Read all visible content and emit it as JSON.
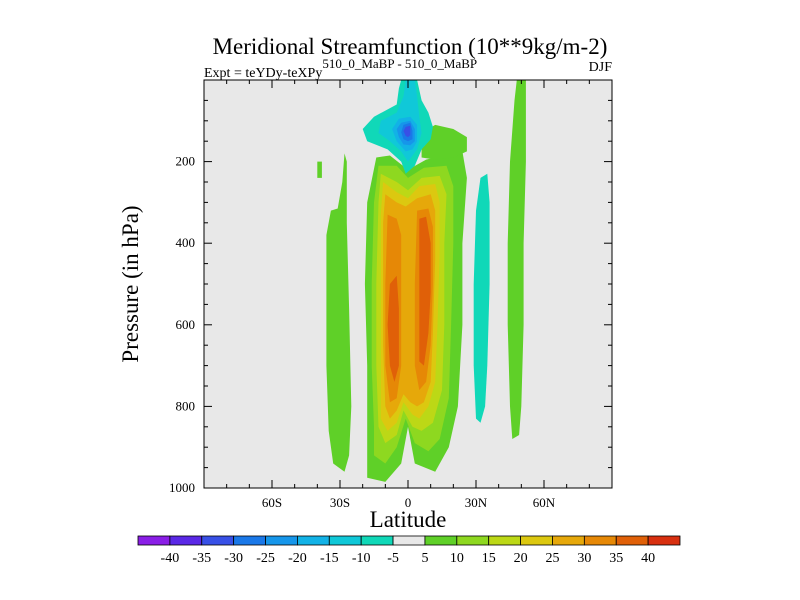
{
  "chart_data": {
    "type": "contour",
    "title": "Meridional Streamfunction (10**9kg/m-2)",
    "subtitle_left": "Expt = teYDy-teXPy",
    "subtitle_sup": "510_0_MaBP - 510_0_MaBP",
    "season": "DJF",
    "xlabel": "Latitude",
    "ylabel": "Pressure (in hPa)",
    "xlim": [
      -90,
      90
    ],
    "ylim": [
      1000,
      0
    ],
    "x_ticks": [
      {
        "value": -60,
        "label": "60S"
      },
      {
        "value": -30,
        "label": "30S"
      },
      {
        "value": 0,
        "label": "0"
      },
      {
        "value": 30,
        "label": "30N"
      },
      {
        "value": 60,
        "label": "60N"
      }
    ],
    "y_ticks": [
      {
        "value": 200,
        "label": "200"
      },
      {
        "value": 400,
        "label": "400"
      },
      {
        "value": 600,
        "label": "600"
      },
      {
        "value": 800,
        "label": "800"
      },
      {
        "value": 1000,
        "label": "1000"
      }
    ],
    "background_color": "#e8e8e8",
    "colorbar": {
      "labels": [
        "-40",
        "-35",
        "-30",
        "-25",
        "-20",
        "-15",
        "-10",
        "-5",
        "5",
        "10",
        "15",
        "20",
        "25",
        "30",
        "35",
        "40"
      ],
      "colors": [
        "#8a1ee6",
        "#5a28e6",
        "#3850e6",
        "#1a78e8",
        "#1696ea",
        "#12b2e6",
        "#10c8d8",
        "#10d8b8",
        "#e8e8e8",
        "#5fd028",
        "#8ed820",
        "#bcd816",
        "#dcc810",
        "#e6a80a",
        "#e68806",
        "#e06008",
        "#d83010"
      ]
    },
    "features": [
      {
        "name": "southern green band",
        "level": 5,
        "polygon": [
          [
            -31,
            315
          ],
          [
            -29,
            250
          ],
          [
            -28,
            180
          ],
          [
            -27,
            200
          ],
          [
            -27,
            350
          ],
          [
            -26,
            560
          ],
          [
            -25,
            800
          ],
          [
            -26,
            920
          ],
          [
            -28,
            960
          ],
          [
            -33,
            940
          ],
          [
            -35,
            860
          ],
          [
            -36,
            700
          ],
          [
            -36,
            500
          ],
          [
            -36,
            380
          ],
          [
            -34,
            320
          ]
        ]
      },
      {
        "name": "southern tiny patch",
        "level": 5,
        "polygon": [
          [
            -40,
            200
          ],
          [
            -38,
            200
          ],
          [
            -38,
            240
          ],
          [
            -40,
            240
          ]
        ]
      },
      {
        "name": "main cell 5",
        "level": 5,
        "polygon": [
          [
            -14,
            190
          ],
          [
            -8,
            185
          ],
          [
            0,
            220
          ],
          [
            8,
            195
          ],
          [
            24,
            175
          ],
          [
            26,
            240
          ],
          [
            24,
            400
          ],
          [
            24,
            600
          ],
          [
            22,
            800
          ],
          [
            18,
            900
          ],
          [
            12,
            960
          ],
          [
            3,
            940
          ],
          [
            0,
            850
          ],
          [
            -3,
            940
          ],
          [
            -10,
            985
          ],
          [
            -18,
            975
          ],
          [
            -18,
            900
          ],
          [
            -18,
            700
          ],
          [
            -19,
            500
          ],
          [
            -18,
            300
          ]
        ]
      },
      {
        "name": "main cell 10",
        "level": 10,
        "polygon": [
          [
            -13,
            210
          ],
          [
            -5,
            210
          ],
          [
            0,
            240
          ],
          [
            7,
            215
          ],
          [
            17,
            210
          ],
          [
            20,
            260
          ],
          [
            20,
            400
          ],
          [
            19,
            600
          ],
          [
            18,
            780
          ],
          [
            14,
            880
          ],
          [
            9,
            910
          ],
          [
            3,
            890
          ],
          [
            -1,
            830
          ],
          [
            -5,
            900
          ],
          [
            -10,
            940
          ],
          [
            -15,
            920
          ],
          [
            -15,
            850
          ],
          [
            -16,
            700
          ],
          [
            -16,
            500
          ],
          [
            -15,
            300
          ]
        ]
      },
      {
        "name": "main cell 15",
        "level": 15,
        "polygon": [
          [
            -12,
            230
          ],
          [
            -5,
            250
          ],
          [
            0,
            270
          ],
          [
            6,
            240
          ],
          [
            14,
            235
          ],
          [
            17,
            280
          ],
          [
            16,
            400
          ],
          [
            16,
            600
          ],
          [
            15,
            760
          ],
          [
            11,
            840
          ],
          [
            6,
            860
          ],
          [
            2,
            850
          ],
          [
            -2,
            810
          ],
          [
            -5,
            870
          ],
          [
            -10,
            890
          ],
          [
            -13,
            850
          ],
          [
            -14,
            700
          ],
          [
            -14,
            500
          ],
          [
            -13,
            300
          ]
        ]
      },
      {
        "name": "main cell 20",
        "level": 20,
        "polygon": [
          [
            -11,
            250
          ],
          [
            -5,
            275
          ],
          [
            0,
            290
          ],
          [
            5,
            260
          ],
          [
            12,
            255
          ],
          [
            14,
            300
          ],
          [
            14,
            420
          ],
          [
            13,
            600
          ],
          [
            12,
            740
          ],
          [
            9,
            800
          ],
          [
            5,
            830
          ],
          [
            2,
            820
          ],
          [
            -2,
            790
          ],
          [
            -5,
            840
          ],
          [
            -9,
            860
          ],
          [
            -12,
            830
          ],
          [
            -12,
            680
          ],
          [
            -12,
            500
          ],
          [
            -12,
            330
          ]
        ]
      },
      {
        "name": "main cell 25",
        "level": 25,
        "polygon": [
          [
            -10,
            280
          ],
          [
            -5,
            300
          ],
          [
            -1,
            310
          ],
          [
            4,
            290
          ],
          [
            10,
            280
          ],
          [
            12,
            320
          ],
          [
            12,
            440
          ],
          [
            11,
            620
          ],
          [
            10,
            740
          ],
          [
            7,
            790
          ],
          [
            4,
            800
          ],
          [
            1,
            790
          ],
          [
            -2,
            770
          ],
          [
            -5,
            810
          ],
          [
            -8,
            830
          ],
          [
            -10,
            800
          ],
          [
            -11,
            650
          ],
          [
            -11,
            500
          ],
          [
            -11,
            350
          ]
        ]
      },
      {
        "name": "main cell 30 south",
        "level": 30,
        "polygon": [
          [
            -9,
            330
          ],
          [
            -5,
            340
          ],
          [
            -3,
            380
          ],
          [
            -3,
            600
          ],
          [
            -3,
            700
          ],
          [
            -5,
            780
          ],
          [
            -8,
            790
          ],
          [
            -10,
            700
          ],
          [
            -10,
            500
          ]
        ]
      },
      {
        "name": "main cell 30 north",
        "level": 30,
        "polygon": [
          [
            4,
            320
          ],
          [
            9,
            315
          ],
          [
            11,
            360
          ],
          [
            11,
            500
          ],
          [
            10,
            650
          ],
          [
            8,
            740
          ],
          [
            5,
            760
          ],
          [
            3,
            700
          ],
          [
            3,
            500
          ]
        ]
      },
      {
        "name": "southern 35 patch",
        "level": 35,
        "polygon": [
          [
            -8,
            500
          ],
          [
            -5,
            480
          ],
          [
            -4,
            560
          ],
          [
            -4,
            700
          ],
          [
            -6,
            740
          ],
          [
            -8,
            700
          ],
          [
            -9,
            600
          ]
        ]
      },
      {
        "name": "northern 35 patch",
        "level": 35,
        "polygon": [
          [
            5,
            340
          ],
          [
            8,
            335
          ],
          [
            10,
            400
          ],
          [
            10,
            520
          ],
          [
            9,
            620
          ],
          [
            7,
            700
          ],
          [
            5,
            690
          ],
          [
            5,
            500
          ]
        ]
      },
      {
        "name": "upper green cap",
        "level": 5,
        "polygon": [
          [
            6,
            130
          ],
          [
            12,
            110
          ],
          [
            20,
            120
          ],
          [
            26,
            140
          ],
          [
            26,
            175
          ],
          [
            20,
            190
          ],
          [
            12,
            195
          ],
          [
            6,
            190
          ]
        ]
      },
      {
        "name": "negative cell -5",
        "level": -5,
        "polygon": [
          [
            -3,
            0
          ],
          [
            4,
            0
          ],
          [
            6,
            50
          ],
          [
            9,
            80
          ],
          [
            11,
            115
          ],
          [
            10,
            145
          ],
          [
            6,
            170
          ],
          [
            3,
            210
          ],
          [
            -1,
            230
          ],
          [
            -3,
            200
          ],
          [
            -9,
            170
          ],
          [
            -18,
            150
          ],
          [
            -20,
            120
          ],
          [
            -15,
            90
          ],
          [
            -5,
            60
          ],
          [
            -4,
            20
          ]
        ]
      },
      {
        "name": "negative cell -10",
        "level": -10,
        "polygon": [
          [
            -1,
            0
          ],
          [
            3,
            0
          ],
          [
            4,
            40
          ],
          [
            5,
            90
          ],
          [
            6,
            130
          ],
          [
            4,
            170
          ],
          [
            0,
            200
          ],
          [
            -3,
            175
          ],
          [
            -8,
            150
          ],
          [
            -13,
            130
          ],
          [
            -12,
            100
          ],
          [
            -5,
            80
          ],
          [
            -2,
            40
          ]
        ]
      },
      {
        "name": "negative cell -15",
        "level": -15,
        "polygon": [
          [
            -4,
            95
          ],
          [
            1,
            90
          ],
          [
            4,
            110
          ],
          [
            4,
            150
          ],
          [
            2,
            170
          ],
          [
            -1,
            175
          ],
          [
            -5,
            150
          ],
          [
            -7,
            120
          ]
        ]
      },
      {
        "name": "negative cell -20",
        "level": -20,
        "polygon": [
          [
            -3,
            105
          ],
          [
            1,
            100
          ],
          [
            3,
            120
          ],
          [
            3,
            150
          ],
          [
            1,
            160
          ],
          [
            -2,
            158
          ],
          [
            -4,
            140
          ],
          [
            -5,
            120
          ]
        ]
      },
      {
        "name": "negative cell -25",
        "level": -25,
        "polygon": [
          [
            -2,
            110
          ],
          [
            1,
            105
          ],
          [
            2,
            125
          ],
          [
            2,
            145
          ],
          [
            0,
            150
          ],
          [
            -2,
            145
          ],
          [
            -3,
            128
          ]
        ]
      },
      {
        "name": "negative cell -30",
        "level": -30,
        "polygon": [
          [
            -1,
            115
          ],
          [
            1,
            112
          ],
          [
            1,
            135
          ],
          [
            0,
            140
          ],
          [
            -1,
            137
          ],
          [
            -2,
            125
          ]
        ]
      },
      {
        "name": "northern negative band",
        "level": -5,
        "polygon": [
          [
            32,
            240
          ],
          [
            35,
            230
          ],
          [
            36,
            300
          ],
          [
            36,
            500
          ],
          [
            35,
            700
          ],
          [
            34,
            800
          ],
          [
            32,
            840
          ],
          [
            30,
            830
          ],
          [
            29,
            700
          ],
          [
            29,
            500
          ],
          [
            30,
            320
          ]
        ]
      },
      {
        "name": "northern green band",
        "level": 5,
        "polygon": [
          [
            48,
            0
          ],
          [
            52,
            0
          ],
          [
            52,
            200
          ],
          [
            51,
            400
          ],
          [
            51,
            600
          ],
          [
            50,
            800
          ],
          [
            49,
            870
          ],
          [
            46,
            880
          ],
          [
            45,
            800
          ],
          [
            44,
            600
          ],
          [
            44,
            400
          ],
          [
            45,
            200
          ],
          [
            47,
            50
          ]
        ]
      }
    ]
  }
}
